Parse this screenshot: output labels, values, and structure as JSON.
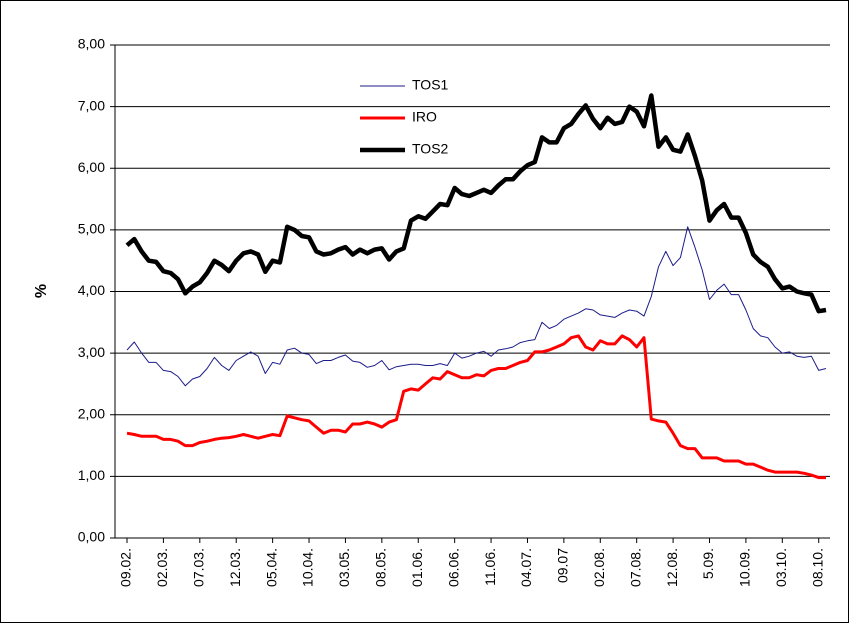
{
  "chart_data": {
    "type": "line",
    "y_label": "%",
    "categories": [
      "09.02.",
      null,
      null,
      null,
      null,
      "02.03.",
      null,
      null,
      null,
      null,
      "07.03.",
      null,
      null,
      null,
      null,
      "12.03.",
      null,
      null,
      null,
      null,
      "05.04.",
      null,
      null,
      null,
      null,
      "10.04.",
      null,
      null,
      null,
      null,
      "03.05.",
      null,
      null,
      null,
      null,
      "08.05.",
      null,
      null,
      null,
      null,
      "01.06.",
      null,
      null,
      null,
      null,
      "06.06.",
      null,
      null,
      null,
      null,
      "11.06.",
      null,
      null,
      null,
      null,
      "04.07.",
      null,
      null,
      null,
      null,
      "09.07",
      null,
      null,
      null,
      null,
      "02.08.",
      null,
      null,
      null,
      null,
      "07.08.",
      null,
      null,
      null,
      null,
      "12.08.",
      null,
      null,
      null,
      null,
      "5.09.",
      null,
      null,
      null,
      null,
      "10.09.",
      null,
      null,
      null,
      null,
      "03.10.",
      null,
      null,
      null,
      null,
      "08.10.",
      null
    ],
    "series": [
      {
        "name": "TOS1",
        "color": "#1c1c8a",
        "values": [
          3.05,
          3.18,
          3.0,
          2.85,
          2.85,
          2.72,
          2.7,
          2.62,
          2.47,
          2.58,
          2.62,
          2.75,
          2.93,
          2.8,
          2.72,
          2.88,
          2.95,
          3.02,
          2.95,
          2.67,
          2.85,
          2.82,
          3.05,
          3.08,
          3.0,
          2.98,
          2.83,
          2.88,
          2.88,
          2.93,
          2.97,
          2.87,
          2.85,
          2.77,
          2.8,
          2.88,
          2.73,
          2.78,
          2.8,
          2.82,
          2.82,
          2.8,
          2.8,
          2.83,
          2.8,
          3.0,
          2.92,
          2.95,
          3.0,
          3.03,
          2.95,
          3.05,
          3.07,
          3.1,
          3.17,
          3.2,
          3.22,
          3.5,
          3.4,
          3.45,
          3.55,
          3.6,
          3.65,
          3.72,
          3.7,
          3.62,
          3.6,
          3.58,
          3.65,
          3.7,
          3.68,
          3.6,
          3.92,
          4.4,
          4.65,
          4.42,
          4.55,
          5.05,
          4.72,
          4.35,
          3.87,
          4.02,
          4.12,
          3.95,
          3.95,
          3.7,
          3.4,
          3.28,
          3.25,
          3.1,
          3.0,
          3.02,
          2.95,
          2.93,
          2.95,
          2.72,
          2.75
        ]
      },
      {
        "name": "IRO",
        "color": "#ff0000",
        "values": [
          1.7,
          1.68,
          1.65,
          1.65,
          1.65,
          1.6,
          1.6,
          1.57,
          1.5,
          1.5,
          1.55,
          1.57,
          1.6,
          1.62,
          1.63,
          1.65,
          1.68,
          1.65,
          1.62,
          1.65,
          1.68,
          1.66,
          1.98,
          1.95,
          1.92,
          1.9,
          1.8,
          1.7,
          1.75,
          1.75,
          1.72,
          1.85,
          1.85,
          1.88,
          1.85,
          1.8,
          1.88,
          1.92,
          2.38,
          2.42,
          2.4,
          2.5,
          2.6,
          2.58,
          2.7,
          2.65,
          2.6,
          2.6,
          2.65,
          2.63,
          2.72,
          2.75,
          2.75,
          2.8,
          2.85,
          2.88,
          3.02,
          3.02,
          3.05,
          3.1,
          3.15,
          3.25,
          3.28,
          3.1,
          3.05,
          3.2,
          3.15,
          3.15,
          3.28,
          3.22,
          3.1,
          3.25,
          1.93,
          1.9,
          1.88,
          1.7,
          1.5,
          1.45,
          1.45,
          1.3,
          1.3,
          1.3,
          1.25,
          1.25,
          1.25,
          1.2,
          1.2,
          1.15,
          1.1,
          1.07,
          1.07,
          1.07,
          1.07,
          1.05,
          1.02,
          0.98,
          0.98
        ]
      },
      {
        "name": "TOS2",
        "color": "#000000",
        "values": [
          4.75,
          4.85,
          4.65,
          4.5,
          4.48,
          4.33,
          4.3,
          4.2,
          3.97,
          4.08,
          4.15,
          4.3,
          4.5,
          4.43,
          4.33,
          4.5,
          4.62,
          4.65,
          4.6,
          4.32,
          4.5,
          4.47,
          5.05,
          5.0,
          4.9,
          4.88,
          4.65,
          4.6,
          4.62,
          4.68,
          4.72,
          4.6,
          4.68,
          4.62,
          4.68,
          4.7,
          4.52,
          4.65,
          4.7,
          5.15,
          5.22,
          5.18,
          5.3,
          5.42,
          5.4,
          5.68,
          5.58,
          5.55,
          5.6,
          5.65,
          5.6,
          5.72,
          5.82,
          5.82,
          5.95,
          6.05,
          6.1,
          6.5,
          6.42,
          6.42,
          6.65,
          6.72,
          6.88,
          7.02,
          6.8,
          6.65,
          6.82,
          6.72,
          6.75,
          7.0,
          6.92,
          6.68,
          7.18,
          6.35,
          6.5,
          6.3,
          6.27,
          6.55,
          6.2,
          5.8,
          5.15,
          5.32,
          5.42,
          5.2,
          5.2,
          4.95,
          4.6,
          4.48,
          4.4,
          4.2,
          4.05,
          4.08,
          4.0,
          3.97,
          3.95,
          3.68,
          3.7
        ]
      }
    ],
    "ylim": [
      0,
      8
    ],
    "yticks": [
      {
        "value": 0,
        "label": "0,00"
      },
      {
        "value": 1,
        "label": "1,00"
      },
      {
        "value": 2,
        "label": "2,00"
      },
      {
        "value": 3,
        "label": "3,00"
      },
      {
        "value": 4,
        "label": "4,00"
      },
      {
        "value": 5,
        "label": "5,00"
      },
      {
        "value": 6,
        "label": "6,00"
      },
      {
        "value": 7,
        "label": "7,00"
      },
      {
        "value": 8,
        "label": "8,00"
      }
    ],
    "grid": true
  }
}
